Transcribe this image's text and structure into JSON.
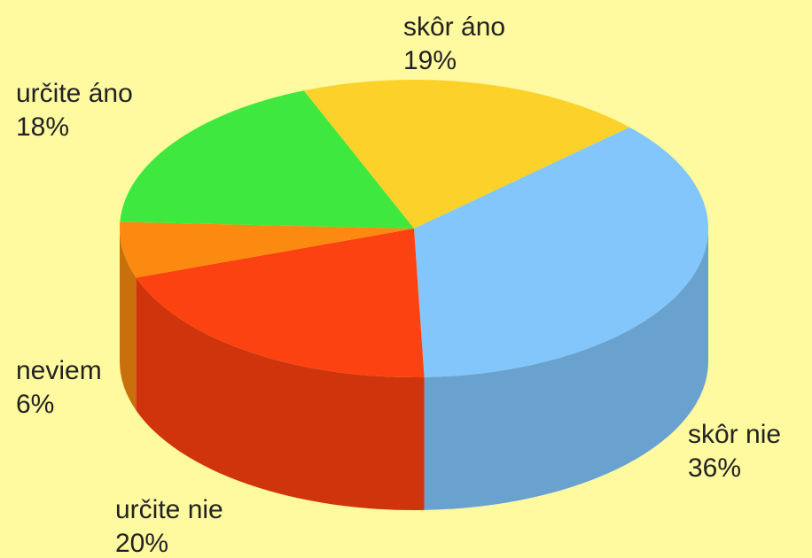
{
  "chart_data": {
    "type": "pie3d",
    "categories": [
      "skôr áno",
      "skôr nie",
      "určite nie",
      "neviem",
      "určite áno"
    ],
    "values": [
      19,
      36,
      20,
      6,
      18
    ],
    "value_labels": [
      "19%",
      "36%",
      "20%",
      "6%",
      "18%"
    ],
    "colors": [
      "#fcd22a",
      "#82c6fc",
      "#fc4210",
      "#fc8a10",
      "#3ee83e"
    ],
    "side_colors": [
      "#c9a41e",
      "#6aa2cf",
      "#d0340c",
      "#c8700c",
      "#2fb82f"
    ]
  }
}
